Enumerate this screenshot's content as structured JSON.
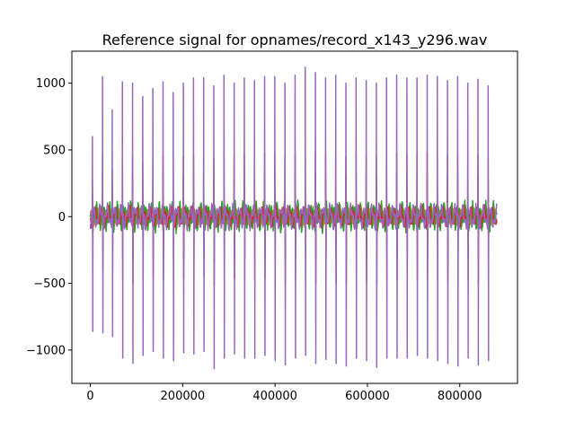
{
  "chart_data": {
    "type": "line",
    "title": "Reference signal for opnames/record_x143_y296.wav",
    "xlabel": "",
    "ylabel": "",
    "xlim": [
      -40000,
      925000
    ],
    "ylim": [
      -1250,
      1240
    ],
    "x_ticks": [
      0,
      200000,
      400000,
      600000,
      800000
    ],
    "x_tick_labels": [
      "0",
      "200000",
      "400000",
      "600000",
      "800000"
    ],
    "y_ticks": [
      1000,
      500,
      0,
      -500,
      -1000
    ],
    "y_tick_labels": [
      "1000",
      "500",
      "0",
      "−500",
      "−1000"
    ],
    "grid": false,
    "legend": "none",
    "x_range": [
      0,
      880000
    ],
    "spike_positions": [
      5000,
      27000,
      48000,
      70000,
      92000,
      114000,
      136000,
      158000,
      180000,
      202000,
      224000,
      246000,
      268000,
      290000,
      312000,
      334000,
      356000,
      378000,
      400000,
      422000,
      444000,
      466000,
      488000,
      510000,
      532000,
      554000,
      576000,
      598000,
      620000,
      642000,
      664000,
      686000,
      708000,
      730000,
      752000,
      774000,
      796000,
      818000,
      840000,
      862000
    ],
    "spike_peaks": [
      600,
      1050,
      800,
      1010,
      1000,
      900,
      960,
      1010,
      930,
      1000,
      1040,
      1040,
      980,
      1060,
      1000,
      1040,
      1020,
      1050,
      1050,
      1000,
      1060,
      1120,
      1080,
      1040,
      1060,
      1000,
      1040,
      1020,
      1000,
      1040,
      1060,
      1040,
      1040,
      1060,
      1050,
      1020,
      1050,
      1000,
      1030,
      980
    ],
    "spike_troughs": [
      -860,
      -870,
      -900,
      -1060,
      -1100,
      -1040,
      -1010,
      -1060,
      -1080,
      -1020,
      -1030,
      -1010,
      -1140,
      -1060,
      -1030,
      -1060,
      -1060,
      -1040,
      -1080,
      -1110,
      -1060,
      -1040,
      -1100,
      -1070,
      -1100,
      -1120,
      -1060,
      -1080,
      -1130,
      -1060,
      -1060,
      -1060,
      -1040,
      -1060,
      -1080,
      -1100,
      -1120,
      -1060,
      -1110,
      -1080
    ],
    "series": [
      {
        "color": "#1f77b4",
        "amplitude": 60,
        "peak_scale": 0.3
      },
      {
        "color": "#ff7f0e",
        "amplitude": 70,
        "peak_scale": 0.2
      },
      {
        "color": "#2ca02c",
        "amplitude": 130,
        "peak_scale": 0.1
      },
      {
        "color": "#d62728",
        "amplitude": 90,
        "peak_scale": 0.45
      },
      {
        "color": "#9467bd",
        "amplitude": 110,
        "peak_scale": 1.0
      }
    ]
  }
}
